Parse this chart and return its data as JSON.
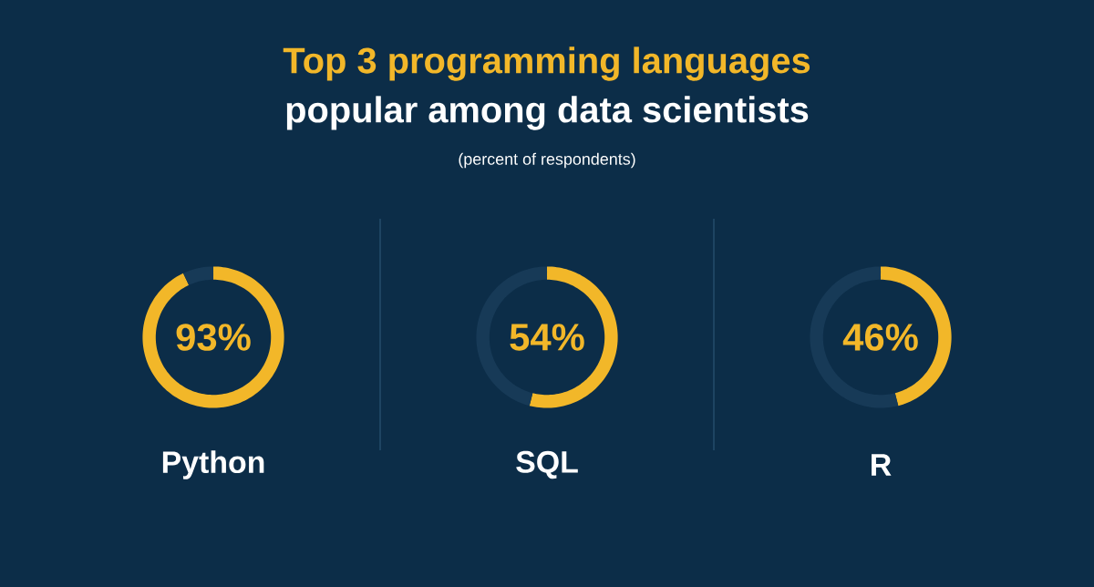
{
  "chart_data": [
    {
      "type": "donut",
      "xlabel": "Python",
      "annotations": [
        "93%"
      ],
      "categories": [
        null,
        null
      ],
      "values": [
        93,
        7
      ],
      "colors": [
        "#f2b729",
        "#173a57"
      ]
    },
    {
      "type": "donut",
      "title": "Top 3 programming languages",
      "subtitle": "popular among data scientists",
      "annotations": [
        "(percent of respondents)",
        "54%"
      ],
      "xlabel": "SQL",
      "categories": [
        null,
        null
      ],
      "values": [
        54,
        46
      ],
      "colors": [
        "#f2b729",
        "#173a57"
      ]
    },
    {
      "type": "donut",
      "xlabel": "R",
      "annotations": [
        "46%"
      ],
      "categories": [
        null,
        null
      ],
      "values": [
        46,
        54
      ],
      "colors": [
        "#f2b729",
        "#173a57"
      ]
    }
  ]
}
